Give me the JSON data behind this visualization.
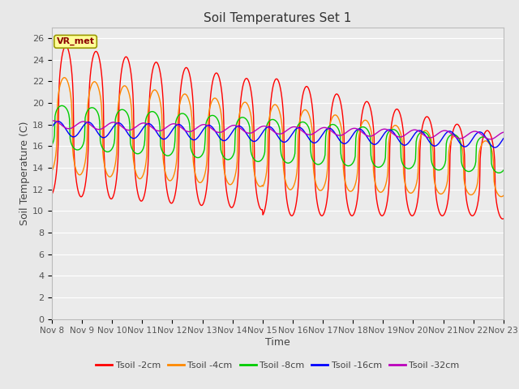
{
  "title": "Soil Temperatures Set 1",
  "xlabel": "Time",
  "ylabel": "Soil Temperature (C)",
  "ylim": [
    0,
    27
  ],
  "yticks": [
    0,
    2,
    4,
    6,
    8,
    10,
    12,
    14,
    16,
    18,
    20,
    22,
    24,
    26
  ],
  "x_labels": [
    "Nov 8",
    "Nov 9",
    "Nov 10",
    "Nov 11",
    "Nov 12",
    "Nov 13",
    "Nov 14",
    "Nov 15",
    "Nov 16",
    "Nov 17",
    "Nov 18",
    "Nov 19",
    "Nov 20",
    "Nov 21",
    "Nov 22",
    "Nov 23"
  ],
  "colors": {
    "Tsoil -2cm": "#ff0000",
    "Tsoil -4cm": "#ff8800",
    "Tsoil -8cm": "#00cc00",
    "Tsoil -16cm": "#0000ff",
    "Tsoil -32cm": "#bb00bb"
  },
  "background_color": "#e8e8e8",
  "plot_bg_color": "#ebebeb",
  "grid_color": "#ffffff",
  "annotation_text": "VR_met",
  "annotation_box_color": "#ffff99",
  "annotation_box_edge": "#999900",
  "n_days": 15,
  "samples_per_day": 48,
  "linewidth": 1.0
}
